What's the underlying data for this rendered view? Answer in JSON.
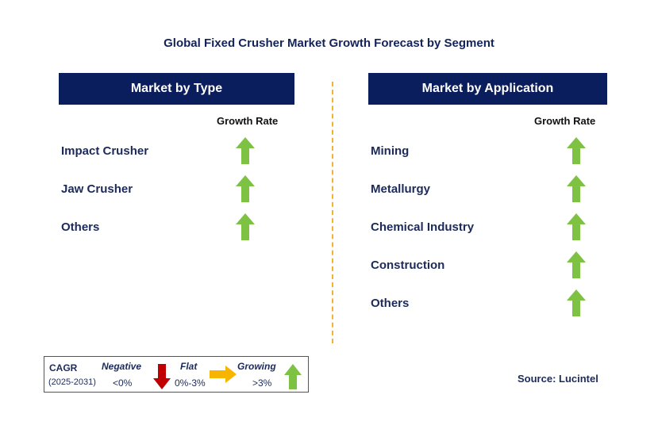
{
  "title": "Global Fixed Crusher Market Growth Forecast by Segment",
  "left_panel": {
    "header": "Market by Type",
    "growth_label": "Growth Rate",
    "items": [
      {
        "label": "Impact Crusher",
        "trend": "growing"
      },
      {
        "label": "Jaw Crusher",
        "trend": "growing"
      },
      {
        "label": "Others",
        "trend": "growing"
      }
    ]
  },
  "right_panel": {
    "header": "Market by Application",
    "growth_label": "Growth Rate",
    "items": [
      {
        "label": "Mining",
        "trend": "growing"
      },
      {
        "label": "Metallurgy",
        "trend": "growing"
      },
      {
        "label": "Chemical Industry",
        "trend": "growing"
      },
      {
        "label": "Construction",
        "trend": "growing"
      },
      {
        "label": "Others",
        "trend": "growing"
      }
    ]
  },
  "legend": {
    "cagr_label": "CAGR",
    "period": "(2025-2031)",
    "negative_label": "Negative",
    "negative_value": "<0%",
    "flat_label": "Flat",
    "flat_value": "0%-3%",
    "growing_label": "Growing",
    "growing_value": ">3%"
  },
  "source": "Source: Lucintel",
  "colors": {
    "header_bg": "#0a1d5c",
    "arrow_green": "#7dc242",
    "arrow_red": "#c00000",
    "arrow_orange": "#f7b500",
    "divider": "#f3b233"
  },
  "icons": {
    "growing": "green-up-arrow-icon",
    "negative": "red-down-arrow-icon",
    "flat": "orange-right-arrow-icon"
  }
}
